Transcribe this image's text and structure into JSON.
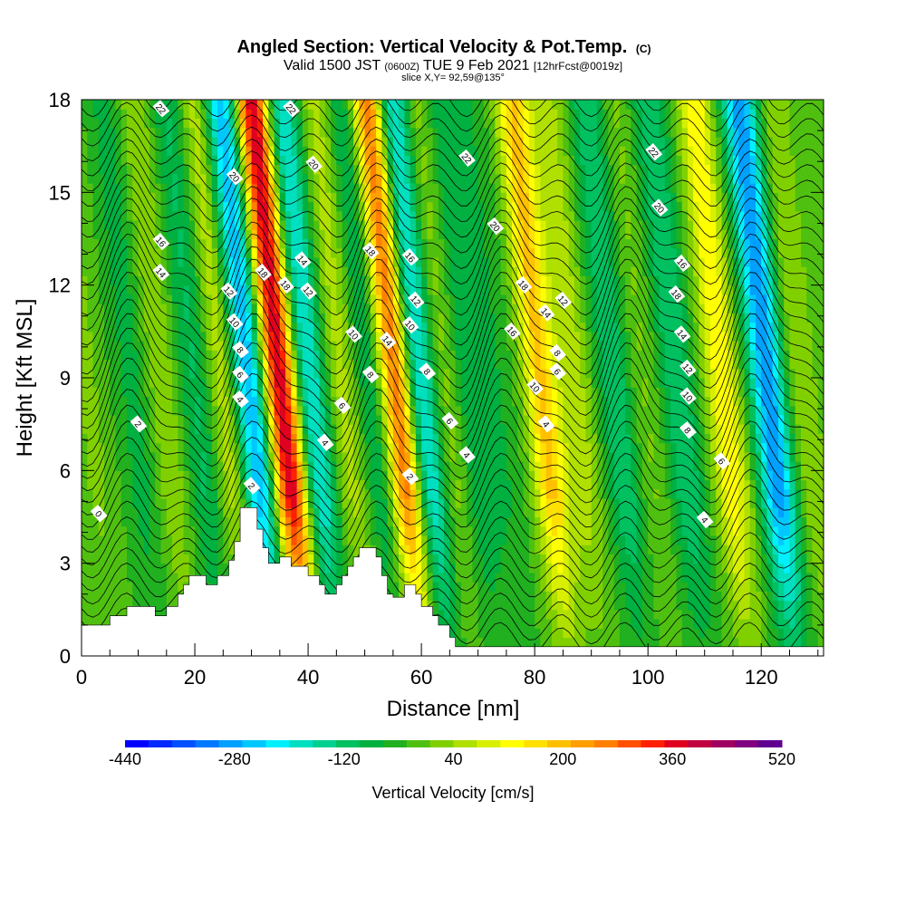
{
  "title": {
    "main": "Angled Section: Vertical Velocity & Pot.Temp.",
    "main_suffix": "(C)",
    "valid_prefix": "Valid 1500 JST",
    "valid_zulu": "(0600Z)",
    "valid_date": "TUE 9 Feb 2021",
    "forecast": "[12hrFcst@0019z]",
    "slice": "slice X,Y= 92,59@135°"
  },
  "chart_data": {
    "type": "heatmap",
    "xlabel": "Distance [nm]",
    "ylabel": "Height [Kft MSL]",
    "xlim": [
      0,
      131
    ],
    "ylim": [
      0,
      18
    ],
    "x_ticks": [
      0,
      20,
      40,
      60,
      80,
      100,
      120
    ],
    "y_ticks": [
      0,
      3,
      6,
      9,
      12,
      15,
      18
    ],
    "colorbar": {
      "label": "Vertical Velocity [cm/s]",
      "range": [
        -440,
        520
      ],
      "step": 40,
      "tick_labels": [
        "-440",
        "-280",
        "-120",
        "40",
        "200",
        "360",
        "520"
      ],
      "colors": [
        "#0000ff",
        "#0028ff",
        "#0050ff",
        "#0078ff",
        "#00a0ff",
        "#00c8ff",
        "#00f0ff",
        "#00e0c0",
        "#00d090",
        "#00c060",
        "#00b040",
        "#20b020",
        "#50c010",
        "#80d000",
        "#b0e000",
        "#d8f000",
        "#ffff00",
        "#ffe000",
        "#ffc000",
        "#ffa000",
        "#ff8000",
        "#ff5000",
        "#ff2000",
        "#e00020",
        "#c00040",
        "#a00060",
        "#800080",
        "#600090"
      ]
    },
    "velocity_bands": [
      {
        "x": 1,
        "w": 0.5
      },
      {
        "x": 9,
        "w": -0.6
      },
      {
        "x": 14,
        "w": 0.8
      },
      {
        "x": 20,
        "w": -0.9
      },
      {
        "x": 25,
        "w": 1.2
      },
      {
        "x": 29.5,
        "w": -3.0
      },
      {
        "x": 35,
        "w": 5.0
      },
      {
        "x": 40,
        "w": -2.2
      },
      {
        "x": 46,
        "w": 1.0
      },
      {
        "x": 51,
        "w": -1.0
      },
      {
        "x": 55.5,
        "w": 3.8
      },
      {
        "x": 59.5,
        "w": -2.5
      },
      {
        "x": 64,
        "w": 0.8
      },
      {
        "x": 68,
        "w": -0.8
      },
      {
        "x": 73,
        "w": -0.4
      },
      {
        "x": 81,
        "w": 2.5
      },
      {
        "x": 87,
        "w": 1.0
      },
      {
        "x": 94,
        "w": -1.2
      },
      {
        "x": 99,
        "w": 0.5
      },
      {
        "x": 105,
        "w": -1.2
      },
      {
        "x": 113,
        "w": 2.0
      },
      {
        "x": 121,
        "w": -3.2
      },
      {
        "x": 127,
        "w": 0.8
      }
    ],
    "terrain": [
      [
        0,
        1
      ],
      [
        5,
        1
      ],
      [
        5,
        1.3
      ],
      [
        8,
        1.3
      ],
      [
        8,
        1.6
      ],
      [
        13,
        1.6
      ],
      [
        13,
        1.3
      ],
      [
        15,
        1.3
      ],
      [
        15,
        1.6
      ],
      [
        17,
        1.6
      ],
      [
        17,
        2
      ],
      [
        18,
        2
      ],
      [
        18,
        2.3
      ],
      [
        19,
        2.3
      ],
      [
        19,
        2.6
      ],
      [
        22,
        2.6
      ],
      [
        22,
        2.3
      ],
      [
        24,
        2.3
      ],
      [
        24,
        2.6
      ],
      [
        26,
        2.6
      ],
      [
        26,
        3.1
      ],
      [
        27,
        3.1
      ],
      [
        27,
        3.7
      ],
      [
        28,
        3.7
      ],
      [
        28,
        4.8
      ],
      [
        31,
        4.8
      ],
      [
        31,
        4.1
      ],
      [
        32,
        4.1
      ],
      [
        32,
        3.5
      ],
      [
        33,
        3.5
      ],
      [
        33,
        3
      ],
      [
        35,
        3
      ],
      [
        35,
        3.2
      ],
      [
        37,
        3.2
      ],
      [
        37,
        2.9
      ],
      [
        40,
        2.9
      ],
      [
        40,
        2.6
      ],
      [
        42,
        2.6
      ],
      [
        42,
        2.3
      ],
      [
        43,
        2.3
      ],
      [
        43,
        2
      ],
      [
        45,
        2
      ],
      [
        45,
        2.3
      ],
      [
        46,
        2.3
      ],
      [
        46,
        2.6
      ],
      [
        47,
        2.6
      ],
      [
        47,
        2.9
      ],
      [
        48,
        2.9
      ],
      [
        48,
        3.2
      ],
      [
        49,
        3.2
      ],
      [
        49,
        3.5
      ],
      [
        52,
        3.5
      ],
      [
        52,
        3.2
      ],
      [
        53,
        3.2
      ],
      [
        53,
        2.6
      ],
      [
        54,
        2.6
      ],
      [
        54,
        2
      ],
      [
        55,
        2
      ],
      [
        55,
        1.9
      ],
      [
        57,
        1.9
      ],
      [
        57,
        2.3
      ],
      [
        59,
        2.3
      ],
      [
        59,
        2
      ],
      [
        60,
        2
      ],
      [
        60,
        1.6
      ],
      [
        62,
        1.6
      ],
      [
        62,
        1.3
      ],
      [
        63,
        1.3
      ],
      [
        63,
        1
      ],
      [
        65,
        1
      ],
      [
        65,
        0.6
      ],
      [
        66,
        0.6
      ],
      [
        66,
        0.3
      ],
      [
        131,
        0.3
      ]
    ],
    "isotherm_labels": [
      {
        "x": 14,
        "y": 17.7,
        "t": "22"
      },
      {
        "x": 37,
        "y": 17.7,
        "t": "22"
      },
      {
        "x": 68,
        "y": 16.1,
        "t": "22"
      },
      {
        "x": 101,
        "y": 16.3,
        "t": "22"
      },
      {
        "x": 27,
        "y": 15.5,
        "t": "20"
      },
      {
        "x": 41,
        "y": 15.9,
        "t": "20"
      },
      {
        "x": 73,
        "y": 13.9,
        "t": "20"
      },
      {
        "x": 102,
        "y": 14.5,
        "t": "20"
      },
      {
        "x": 14,
        "y": 13.4,
        "t": "16"
      },
      {
        "x": 14,
        "y": 12.4,
        "t": "14"
      },
      {
        "x": 32,
        "y": 12.4,
        "t": "18"
      },
      {
        "x": 36,
        "y": 12,
        "t": "18"
      },
      {
        "x": 39,
        "y": 12.8,
        "t": "14"
      },
      {
        "x": 40,
        "y": 11.8,
        "t": "12"
      },
      {
        "x": 51,
        "y": 13.1,
        "t": "18"
      },
      {
        "x": 58,
        "y": 12.9,
        "t": "16"
      },
      {
        "x": 59,
        "y": 11.5,
        "t": "12"
      },
      {
        "x": 58,
        "y": 10.7,
        "t": "10"
      },
      {
        "x": 54,
        "y": 10.2,
        "t": "14"
      },
      {
        "x": 48,
        "y": 10.4,
        "t": "10"
      },
      {
        "x": 26,
        "y": 11.8,
        "t": "12"
      },
      {
        "x": 27,
        "y": 10.8,
        "t": "10"
      },
      {
        "x": 28,
        "y": 9.9,
        "t": "8"
      },
      {
        "x": 28,
        "y": 9.1,
        "t": "6"
      },
      {
        "x": 28,
        "y": 8.3,
        "t": "4"
      },
      {
        "x": 10,
        "y": 7.5,
        "t": "2"
      },
      {
        "x": 3,
        "y": 4.6,
        "t": "0"
      },
      {
        "x": 30,
        "y": 5.5,
        "t": "2"
      },
      {
        "x": 51,
        "y": 9.1,
        "t": "8"
      },
      {
        "x": 46,
        "y": 8.1,
        "t": "6"
      },
      {
        "x": 43,
        "y": 6.9,
        "t": "4"
      },
      {
        "x": 58,
        "y": 5.8,
        "t": "2"
      },
      {
        "x": 61,
        "y": 9.2,
        "t": "8"
      },
      {
        "x": 65,
        "y": 7.6,
        "t": "6"
      },
      {
        "x": 68,
        "y": 6.5,
        "t": "4"
      },
      {
        "x": 78,
        "y": 12,
        "t": "18"
      },
      {
        "x": 82,
        "y": 11.1,
        "t": "14"
      },
      {
        "x": 85,
        "y": 11.5,
        "t": "12"
      },
      {
        "x": 76,
        "y": 10.5,
        "t": "16"
      },
      {
        "x": 84,
        "y": 9.8,
        "t": "8"
      },
      {
        "x": 84,
        "y": 9.2,
        "t": "6"
      },
      {
        "x": 80,
        "y": 8.7,
        "t": "10"
      },
      {
        "x": 82,
        "y": 7.5,
        "t": "4"
      },
      {
        "x": 106,
        "y": 12.7,
        "t": "16"
      },
      {
        "x": 105,
        "y": 11.7,
        "t": "18"
      },
      {
        "x": 106,
        "y": 10.4,
        "t": "14"
      },
      {
        "x": 107,
        "y": 9.3,
        "t": "12"
      },
      {
        "x": 107,
        "y": 8.4,
        "t": "10"
      },
      {
        "x": 107,
        "y": 7.3,
        "t": "8"
      },
      {
        "x": 113,
        "y": 6.3,
        "t": "6"
      },
      {
        "x": 110,
        "y": 4.4,
        "t": "4"
      }
    ]
  }
}
